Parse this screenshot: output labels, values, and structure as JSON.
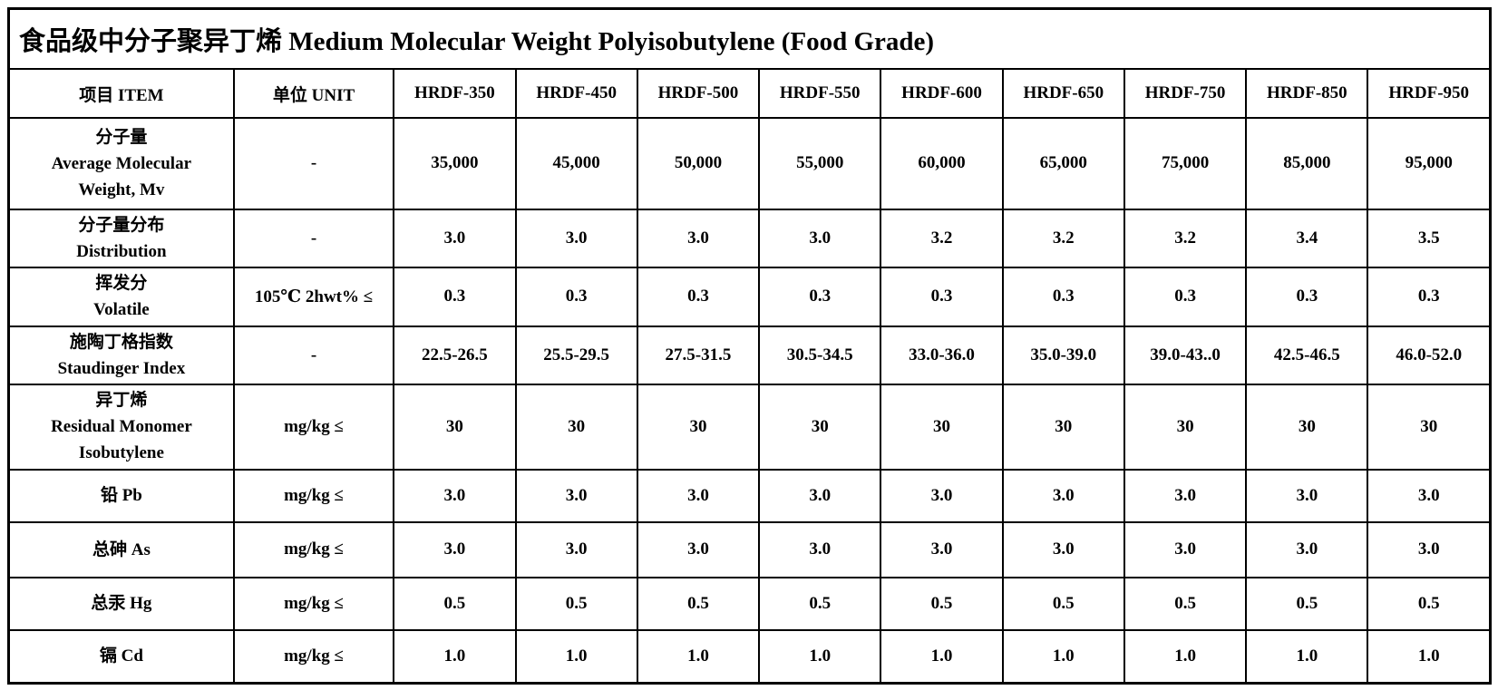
{
  "table": {
    "title": "食品级中分子聚异丁烯 Medium Molecular Weight Polyisobutylene (Food Grade)",
    "columns": [
      "项目 ITEM",
      "单位 UNIT",
      "HRDF-350",
      "HRDF-450",
      "HRDF-500",
      "HRDF-550",
      "HRDF-600",
      "HRDF-650",
      "HRDF-750",
      "HRDF-850",
      "HRDF-950"
    ],
    "rows": [
      {
        "item": [
          "分子量",
          "Average Molecular",
          "Weight, Mv"
        ],
        "unit": "-",
        "values": [
          "35,000",
          "45,000",
          "50,000",
          "55,000",
          "60,000",
          "65,000",
          "75,000",
          "85,000",
          "95,000"
        ]
      },
      {
        "item": [
          "分子量分布",
          "Distribution"
        ],
        "unit": "-",
        "values": [
          "3.0",
          "3.0",
          "3.0",
          "3.0",
          "3.2",
          "3.2",
          "3.2",
          "3.4",
          "3.5"
        ]
      },
      {
        "item": [
          "挥发分",
          "Volatile"
        ],
        "unit": "105℃ 2hwt% ≤",
        "values": [
          "0.3",
          "0.3",
          "0.3",
          "0.3",
          "0.3",
          "0.3",
          "0.3",
          "0.3",
          "0.3"
        ]
      },
      {
        "item": [
          "施陶丁格指数",
          "Staudinger Index"
        ],
        "unit": "-",
        "values": [
          "22.5-26.5",
          "25.5-29.5",
          "27.5-31.5",
          "30.5-34.5",
          "33.0-36.0",
          "35.0-39.0",
          "39.0-43..0",
          "42.5-46.5",
          "46.0-52.0"
        ]
      },
      {
        "item": [
          "异丁烯",
          "Residual Monomer",
          "Isobutylene"
        ],
        "unit": "mg/kg ≤",
        "values": [
          "30",
          "30",
          "30",
          "30",
          "30",
          "30",
          "30",
          "30",
          "30"
        ]
      },
      {
        "item": [
          "铅 Pb"
        ],
        "unit": "mg/kg ≤",
        "values": [
          "3.0",
          "3.0",
          "3.0",
          "3.0",
          "3.0",
          "3.0",
          "3.0",
          "3.0",
          "3.0"
        ]
      },
      {
        "item": [
          "总砷 As"
        ],
        "unit": "mg/kg ≤",
        "values": [
          "3.0",
          "3.0",
          "3.0",
          "3.0",
          "3.0",
          "3.0",
          "3.0",
          "3.0",
          "3.0"
        ]
      },
      {
        "item": [
          "总汞 Hg"
        ],
        "unit": "mg/kg ≤",
        "values": [
          "0.5",
          "0.5",
          "0.5",
          "0.5",
          "0.5",
          "0.5",
          "0.5",
          "0.5",
          "0.5"
        ]
      },
      {
        "item": [
          "镉 Cd"
        ],
        "unit": "mg/kg ≤",
        "values": [
          "1.0",
          "1.0",
          "1.0",
          "1.0",
          "1.0",
          "1.0",
          "1.0",
          "1.0",
          "1.0"
        ]
      }
    ]
  }
}
